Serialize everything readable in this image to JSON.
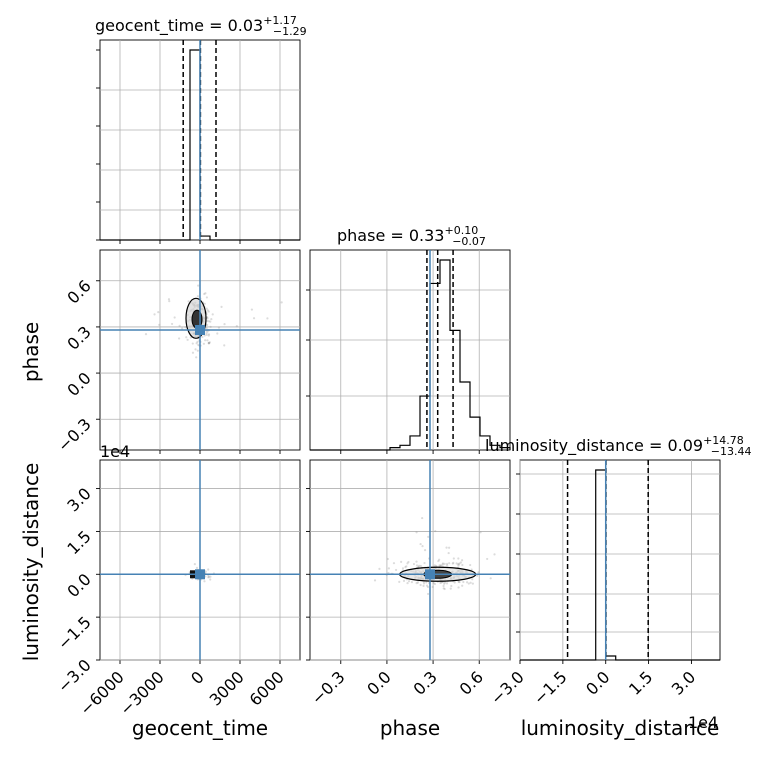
{
  "chart_data": {
    "type": "corner",
    "parameters": [
      "geocent_time",
      "phase",
      "luminosity_distance"
    ],
    "axis_labels": [
      "geocent_time",
      "phase",
      "luminosity_distance"
    ],
    "truths": {
      "geocent_time": 0,
      "phase": 0.28,
      "luminosity_distance": 0
    },
    "truth_color": "#4682b4",
    "contour_color": "#000000",
    "grid": true,
    "marginal_titles": [
      {
        "text": "geocent_time = 0.03",
        "plus": "+1.17",
        "minus": "−1.29"
      },
      {
        "text": "phase = 0.33",
        "plus": "+0.10",
        "minus": "−0.07"
      },
      {
        "text": "luminosity_distance = 0.09",
        "plus": "+14.78",
        "minus": "−13.44"
      }
    ],
    "ranges": {
      "geocent_time": [
        -7500,
        7500
      ],
      "phase": [
        -0.5,
        0.8
      ],
      "luminosity_distance": [
        -30000,
        40000
      ]
    },
    "ticks": {
      "geocent_time": {
        "values": [
          -6000,
          -3000,
          0,
          3000,
          6000
        ],
        "labels": [
          "−6000",
          "−3000",
          "0",
          "3000",
          "6000"
        ]
      },
      "phase": {
        "values": [
          -0.3,
          0.0,
          0.3,
          0.6
        ],
        "labels": [
          "−0.3",
          "0.0",
          "0.3",
          "0.6"
        ]
      },
      "luminosity_distance_y": {
        "values": [
          -30000,
          -15000,
          0,
          15000,
          30000
        ],
        "labels": [
          "−3.0",
          "−1.5",
          "0.0",
          "1.5",
          "3.0"
        ]
      },
      "luminosity_distance_x": {
        "values": [
          -30000,
          -15000,
          0,
          15000,
          30000
        ],
        "labels": [
          "−3.0",
          "−1.5",
          "0.0",
          "1.5",
          "3.0"
        ]
      }
    },
    "offset_text": "1e4",
    "quantile_lines": {
      "geocent_time": [
        -1260,
        30,
        1200
      ],
      "phase": [
        0.26,
        0.33,
        0.43
      ],
      "luminosity_distance": [
        -13350,
        90,
        14870
      ]
    },
    "marginals": {
      "geocent_time": {
        "edges": [
          -7500,
          -750,
          0,
          750,
          7500
        ],
        "counts": [
          0,
          0.96,
          0.02,
          0
        ]
      },
      "phase": {
        "edges": [
          -0.5,
          -0.435,
          -0.37,
          -0.305,
          -0.24,
          -0.175,
          -0.11,
          -0.045,
          0.02,
          0.085,
          0.15,
          0.215,
          0.28,
          0.345,
          0.41,
          0.475,
          0.54,
          0.605,
          0.67,
          0.735,
          0.8
        ],
        "counts": [
          0,
          0,
          0,
          0,
          0,
          0,
          0,
          0,
          0.01,
          0.02,
          0.06,
          0.23,
          0.71,
          0.81,
          0.51,
          0.29,
          0.14,
          0.06,
          0.02,
          0.01
        ]
      },
      "luminosity_distance": {
        "edges": [
          -30000,
          -3500,
          0,
          3500,
          40000
        ],
        "counts": [
          0,
          0.95,
          0.02,
          0
        ]
      }
    }
  }
}
